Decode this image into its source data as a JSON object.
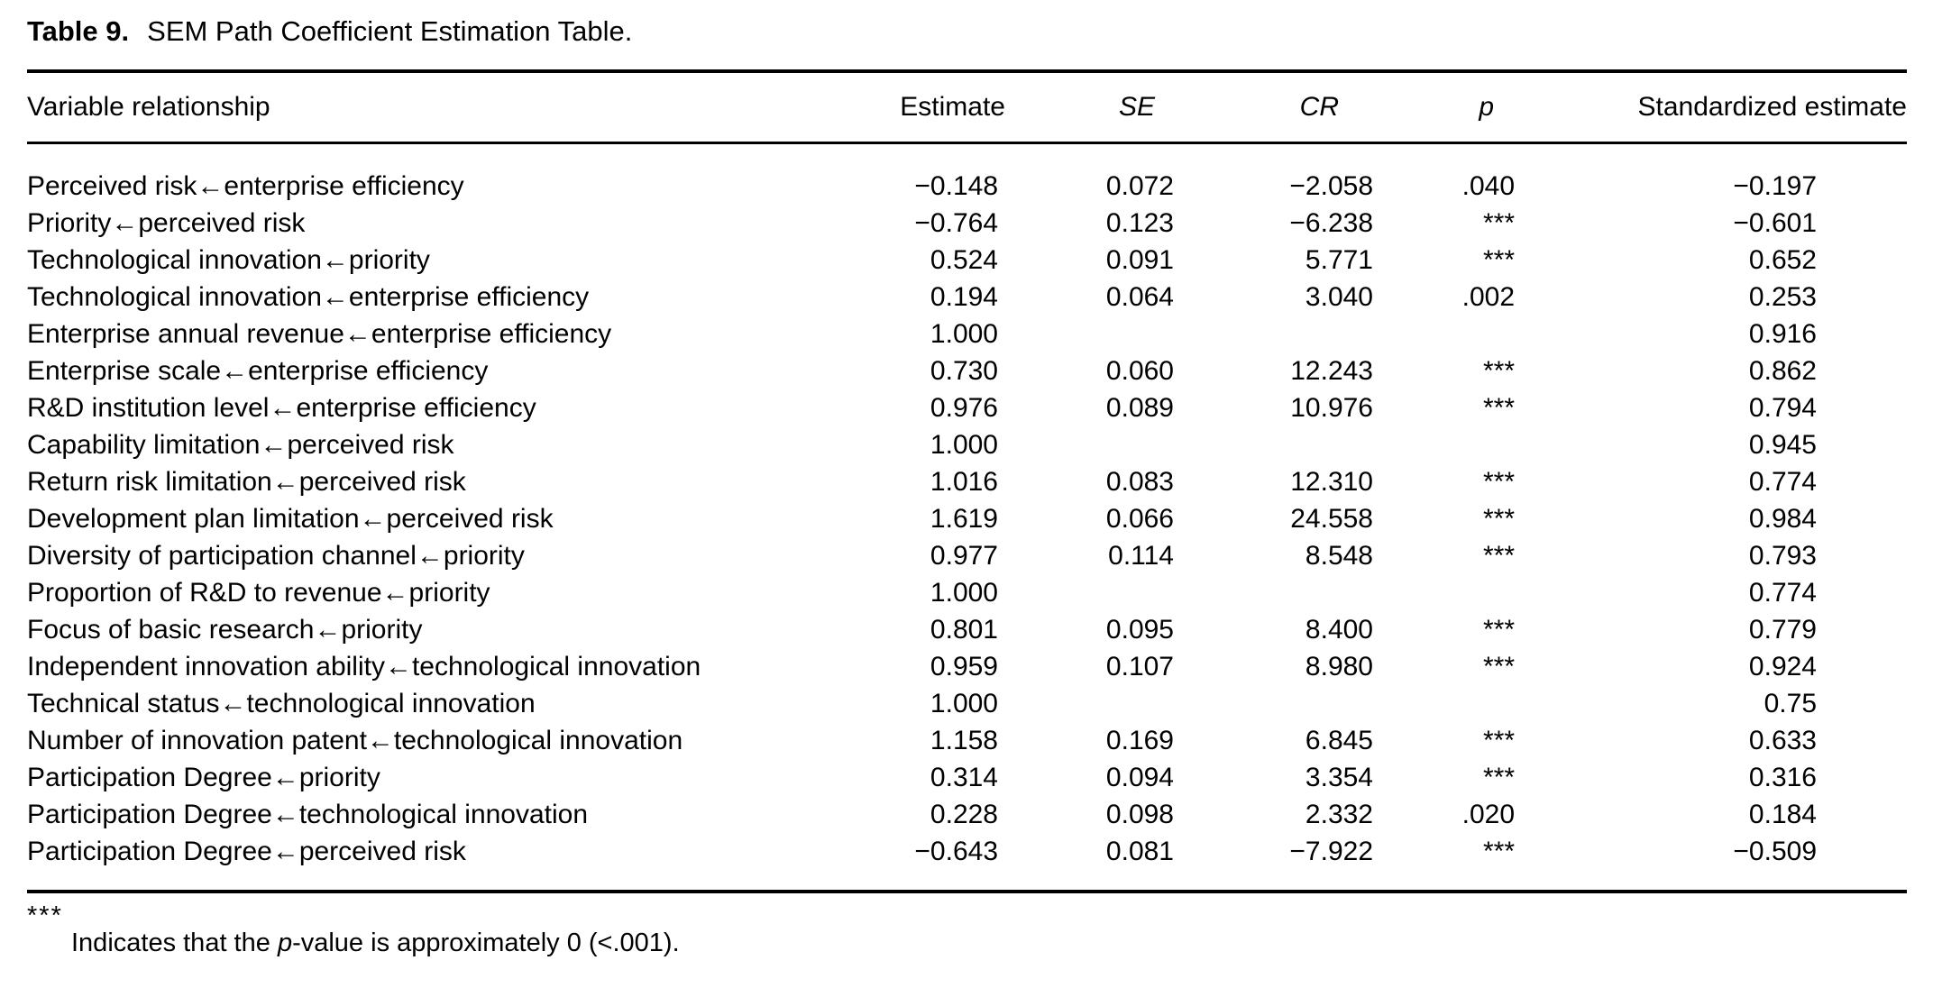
{
  "caption": {
    "label": "Table 9.",
    "text": "SEM Path Coefficient Estimation Table."
  },
  "table": {
    "columns": [
      "Variable relationship",
      "Estimate",
      "SE",
      "CR",
      "p",
      "Standardized estimate"
    ],
    "rows": [
      {
        "relationship": "Perceived risk←enterprise efficiency",
        "estimate": "−0.148",
        "se": "0.072",
        "cr": "−2.058",
        "p": ".040",
        "std": "−0.197"
      },
      {
        "relationship": "Priority←perceived risk",
        "estimate": "−0.764",
        "se": "0.123",
        "cr": "−6.238",
        "p": "***",
        "std": "−0.601"
      },
      {
        "relationship": "Technological innovation←priority",
        "estimate": "0.524",
        "se": "0.091",
        "cr": "5.771",
        "p": "***",
        "std": "0.652"
      },
      {
        "relationship": "Technological innovation←enterprise efficiency",
        "estimate": "0.194",
        "se": "0.064",
        "cr": "3.040",
        "p": ".002",
        "std": "0.253"
      },
      {
        "relationship": "Enterprise annual revenue←enterprise efficiency",
        "estimate": "1.000",
        "se": "",
        "cr": "",
        "p": "",
        "std": "0.916"
      },
      {
        "relationship": "Enterprise scale←enterprise efficiency",
        "estimate": "0.730",
        "se": "0.060",
        "cr": "12.243",
        "p": "***",
        "std": "0.862"
      },
      {
        "relationship": "R&D institution level←enterprise efficiency",
        "estimate": "0.976",
        "se": "0.089",
        "cr": "10.976",
        "p": "***",
        "std": "0.794"
      },
      {
        "relationship": "Capability limitation←perceived risk",
        "estimate": "1.000",
        "se": "",
        "cr": "",
        "p": "",
        "std": "0.945"
      },
      {
        "relationship": "Return risk limitation←perceived risk",
        "estimate": "1.016",
        "se": "0.083",
        "cr": "12.310",
        "p": "***",
        "std": "0.774"
      },
      {
        "relationship": "Development plan limitation←perceived risk",
        "estimate": "1.619",
        "se": "0.066",
        "cr": "24.558",
        "p": "***",
        "std": "0.984"
      },
      {
        "relationship": "Diversity of participation channel←priority",
        "estimate": "0.977",
        "se": "0.114",
        "cr": "8.548",
        "p": "***",
        "std": "0.793"
      },
      {
        "relationship": "Proportion of R&D to revenue←priority",
        "estimate": "1.000",
        "se": "",
        "cr": "",
        "p": "",
        "std": "0.774"
      },
      {
        "relationship": "Focus of basic research←priority",
        "estimate": "0.801",
        "se": "0.095",
        "cr": "8.400",
        "p": "***",
        "std": "0.779"
      },
      {
        "relationship": "Independent innovation ability←technological innovation",
        "estimate": "0.959",
        "se": "0.107",
        "cr": "8.980",
        "p": "***",
        "std": "0.924"
      },
      {
        "relationship": "Technical status←technological innovation",
        "estimate": "1.000",
        "se": "",
        "cr": "",
        "p": "",
        "std": "0.75"
      },
      {
        "relationship": "Number of innovation patent←technological innovation",
        "estimate": "1.158",
        "se": "0.169",
        "cr": "6.845",
        "p": "***",
        "std": "0.633"
      },
      {
        "relationship": "Participation Degree←priority",
        "estimate": "0.314",
        "se": "0.094",
        "cr": "3.354",
        "p": "***",
        "std": "0.316"
      },
      {
        "relationship": "Participation Degree←technological innovation",
        "estimate": "0.228",
        "se": "0.098",
        "cr": "2.332",
        "p": ".020",
        "std": "0.184"
      },
      {
        "relationship": "Participation Degree←perceived risk",
        "estimate": "−0.643",
        "se": "0.081",
        "cr": "−7.922",
        "p": "***",
        "std": "−0.509"
      }
    ]
  },
  "footnote": {
    "marker": "***",
    "text_before": "Indicates that the ",
    "p": "p",
    "text_after": "-value is approximately 0 (<.001)."
  }
}
